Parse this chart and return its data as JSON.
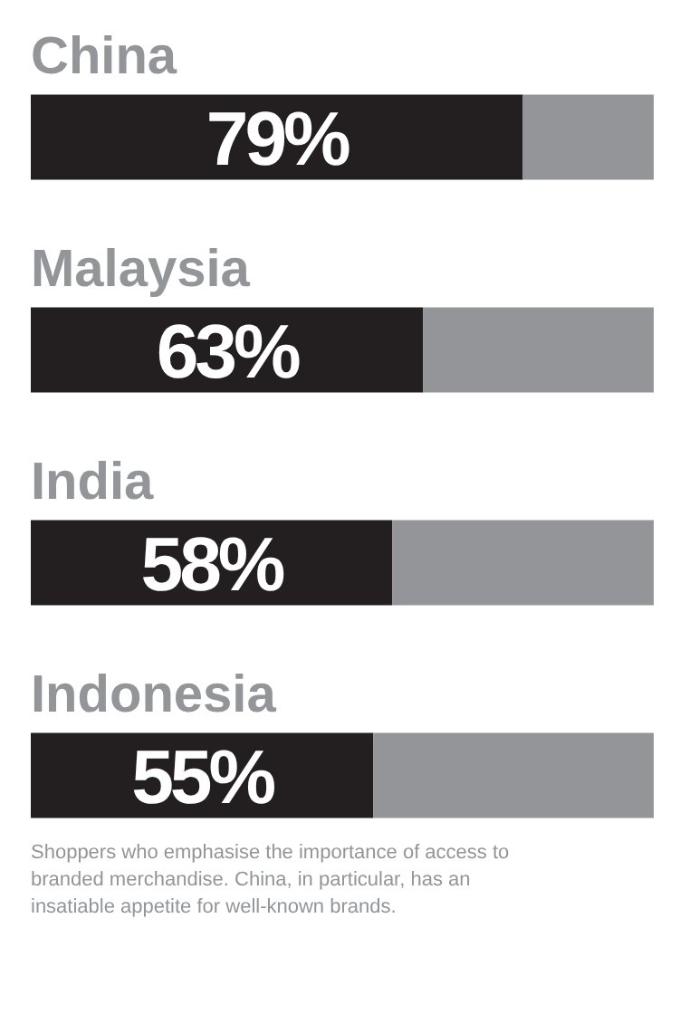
{
  "chart_data": {
    "type": "bar",
    "orientation": "horizontal",
    "stacked": true,
    "categories": [
      "China",
      "Malaysia",
      "India",
      "Indonesia"
    ],
    "series": [
      {
        "color": "#231f20",
        "values": [
          79,
          63,
          58,
          55
        ],
        "value_labels": [
          "79%",
          "63%",
          "58%",
          "55%"
        ]
      },
      {
        "color": "#939598",
        "values": [
          21,
          37,
          42,
          45
        ]
      }
    ],
    "xlim": [
      0,
      100
    ],
    "tick_labels": "y",
    "grid": false,
    "legend": false,
    "annotations": [
      "Shoppers who emphasise the importance of access to branded merchandise. China, in particular, has an insatiable appetite for well-known brands."
    ]
  }
}
